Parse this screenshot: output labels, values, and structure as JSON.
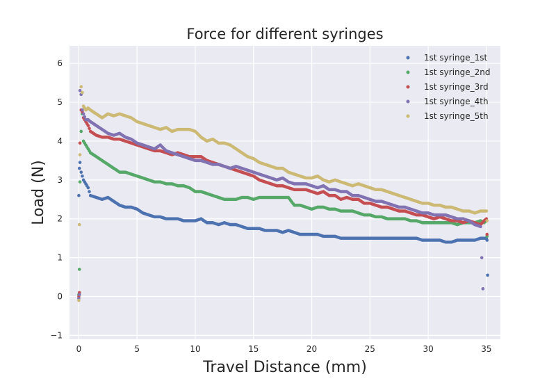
{
  "chart_data": {
    "type": "scatter",
    "title": "Force for different syringes",
    "xlabel": "Travel Distance (mm)",
    "ylabel": "Load (N)",
    "xlim": [
      -0.8,
      36.2
    ],
    "ylim": [
      -1.1,
      6.45
    ],
    "xticks": [
      0,
      5,
      10,
      15,
      20,
      25,
      30,
      35
    ],
    "yticks": [
      -1,
      0,
      1,
      2,
      3,
      4,
      5,
      6
    ],
    "xtick_labels": [
      "0",
      "5",
      "10",
      "15",
      "20",
      "25",
      "30",
      "35"
    ],
    "ytick_labels": [
      "−1",
      "0",
      "1",
      "2",
      "3",
      "4",
      "5",
      "6"
    ],
    "grid": true,
    "legend_position": "top-right",
    "series": [
      {
        "name": "1st syringe_1st",
        "color": "#4C72B0",
        "x": [
          0.0,
          0.05,
          0.1,
          0.2,
          0.3,
          0.4,
          0.6,
          0.8,
          1.0,
          1.5,
          2.0,
          2.5,
          3.0,
          3.5,
          4.0,
          4.5,
          5.0,
          5.5,
          6.0,
          6.5,
          7.0,
          7.5,
          8.0,
          8.5,
          9.0,
          9.5,
          10.0,
          10.5,
          11.0,
          11.5,
          12.0,
          12.5,
          13.0,
          13.5,
          14.0,
          14.5,
          15.0,
          15.5,
          16.0,
          16.5,
          17.0,
          17.5,
          18.0,
          18.5,
          19.0,
          19.5,
          20.0,
          20.5,
          21.0,
          21.5,
          22.0,
          22.5,
          23.0,
          23.5,
          24.0,
          24.5,
          25.0,
          25.5,
          26.0,
          26.5,
          27.0,
          27.5,
          28.0,
          28.5,
          29.0,
          29.5,
          30.0,
          30.5,
          31.0,
          31.5,
          32.0,
          32.5,
          33.0,
          33.5,
          34.0,
          34.5,
          34.8,
          35.0,
          35.05,
          35.1
        ],
        "y": [
          2.6,
          3.3,
          3.45,
          3.2,
          3.1,
          3.0,
          2.9,
          2.8,
          2.6,
          2.55,
          2.5,
          2.55,
          2.45,
          2.35,
          2.3,
          2.3,
          2.25,
          2.15,
          2.1,
          2.05,
          2.05,
          2.0,
          2.0,
          2.0,
          1.95,
          1.95,
          1.95,
          2.0,
          1.9,
          1.9,
          1.85,
          1.9,
          1.85,
          1.85,
          1.8,
          1.75,
          1.75,
          1.75,
          1.7,
          1.7,
          1.7,
          1.65,
          1.7,
          1.65,
          1.6,
          1.6,
          1.6,
          1.6,
          1.55,
          1.55,
          1.55,
          1.5,
          1.5,
          1.5,
          1.5,
          1.5,
          1.5,
          1.5,
          1.5,
          1.5,
          1.5,
          1.5,
          1.5,
          1.5,
          1.5,
          1.45,
          1.45,
          1.45,
          1.45,
          1.4,
          1.4,
          1.45,
          1.45,
          1.45,
          1.45,
          1.5,
          1.5,
          1.5,
          1.45,
          0.55
        ]
      },
      {
        "name": "1st syringe_2nd",
        "color": "#55A868",
        "x": [
          0.0,
          0.05,
          0.1,
          0.2,
          0.3,
          0.4,
          0.6,
          0.8,
          1.0,
          1.5,
          2.0,
          2.5,
          3.0,
          3.5,
          4.0,
          4.5,
          5.0,
          5.5,
          6.0,
          6.5,
          7.0,
          7.5,
          8.0,
          8.5,
          9.0,
          9.5,
          10.0,
          10.5,
          11.0,
          11.5,
          12.0,
          12.5,
          13.0,
          13.5,
          14.0,
          14.5,
          15.0,
          15.5,
          16.0,
          16.5,
          17.0,
          17.5,
          18.0,
          18.5,
          19.0,
          19.5,
          20.0,
          20.5,
          21.0,
          21.5,
          22.0,
          22.5,
          23.0,
          23.5,
          24.0,
          24.5,
          25.0,
          25.5,
          26.0,
          26.5,
          27.0,
          27.5,
          28.0,
          28.5,
          29.0,
          29.5,
          30.0,
          30.5,
          31.0,
          31.5,
          32.0,
          32.5,
          33.0,
          33.5,
          34.0,
          34.5,
          34.8,
          35.0,
          35.05
        ],
        "y": [
          0.05,
          0.7,
          2.95,
          4.25,
          4.7,
          4.0,
          3.9,
          3.8,
          3.7,
          3.6,
          3.5,
          3.4,
          3.3,
          3.2,
          3.2,
          3.15,
          3.1,
          3.05,
          3.0,
          2.95,
          2.95,
          2.9,
          2.9,
          2.85,
          2.85,
          2.8,
          2.7,
          2.7,
          2.65,
          2.6,
          2.55,
          2.5,
          2.5,
          2.5,
          2.55,
          2.55,
          2.5,
          2.55,
          2.55,
          2.55,
          2.55,
          2.55,
          2.55,
          2.35,
          2.35,
          2.3,
          2.25,
          2.3,
          2.3,
          2.25,
          2.25,
          2.2,
          2.2,
          2.2,
          2.15,
          2.1,
          2.1,
          2.05,
          2.05,
          2.0,
          2.0,
          2.0,
          2.0,
          1.95,
          1.95,
          1.9,
          1.9,
          1.9,
          1.9,
          1.9,
          1.9,
          1.85,
          1.9,
          1.9,
          1.9,
          1.95,
          1.9,
          1.95,
          1.55
        ]
      },
      {
        "name": "1st syringe_3rd",
        "color": "#C44E52",
        "x": [
          0.0,
          0.05,
          0.1,
          0.2,
          0.3,
          0.4,
          0.6,
          0.8,
          1.0,
          1.5,
          2.0,
          2.5,
          3.0,
          3.5,
          4.0,
          4.5,
          5.0,
          5.5,
          6.0,
          6.5,
          7.0,
          7.5,
          8.0,
          8.5,
          9.0,
          9.5,
          10.0,
          10.5,
          11.0,
          11.5,
          12.0,
          12.5,
          13.0,
          13.5,
          14.0,
          14.5,
          15.0,
          15.5,
          16.0,
          16.5,
          17.0,
          17.5,
          18.0,
          18.5,
          19.0,
          19.5,
          20.0,
          20.5,
          21.0,
          21.5,
          22.0,
          22.5,
          23.0,
          23.5,
          24.0,
          24.5,
          25.0,
          25.5,
          26.0,
          26.5,
          27.0,
          27.5,
          28.0,
          28.5,
          29.0,
          29.5,
          30.0,
          30.5,
          31.0,
          31.5,
          32.0,
          32.5,
          33.0,
          33.5,
          34.0,
          34.5,
          34.8,
          35.0,
          35.05
        ],
        "y": [
          0.0,
          0.1,
          3.95,
          4.8,
          4.75,
          4.6,
          4.5,
          4.4,
          4.25,
          4.15,
          4.1,
          4.1,
          4.05,
          4.05,
          4.0,
          3.95,
          3.9,
          3.85,
          3.8,
          3.75,
          3.75,
          3.7,
          3.65,
          3.7,
          3.65,
          3.6,
          3.6,
          3.6,
          3.5,
          3.45,
          3.4,
          3.35,
          3.3,
          3.25,
          3.2,
          3.15,
          3.1,
          3.0,
          2.95,
          2.9,
          2.85,
          2.85,
          2.8,
          2.75,
          2.75,
          2.75,
          2.7,
          2.65,
          2.7,
          2.6,
          2.6,
          2.5,
          2.55,
          2.5,
          2.5,
          2.4,
          2.4,
          2.35,
          2.3,
          2.3,
          2.25,
          2.2,
          2.2,
          2.15,
          2.1,
          2.1,
          2.05,
          2.0,
          2.05,
          2.0,
          1.95,
          1.95,
          1.9,
          1.95,
          1.9,
          1.85,
          1.95,
          2.0,
          1.6
        ]
      },
      {
        "name": "1st syringe_4th",
        "color": "#8172B2",
        "x": [
          0.0,
          0.05,
          0.1,
          0.2,
          0.3,
          0.4,
          0.6,
          0.8,
          1.0,
          1.5,
          2.0,
          2.5,
          3.0,
          3.5,
          4.0,
          4.5,
          5.0,
          5.5,
          6.0,
          6.5,
          7.0,
          7.5,
          8.0,
          8.5,
          9.0,
          9.5,
          10.0,
          10.5,
          11.0,
          11.5,
          12.0,
          12.5,
          13.0,
          13.5,
          14.0,
          14.5,
          15.0,
          15.5,
          16.0,
          16.5,
          17.0,
          17.5,
          18.0,
          18.5,
          19.0,
          19.5,
          20.0,
          20.5,
          21.0,
          21.5,
          22.0,
          22.5,
          23.0,
          23.5,
          24.0,
          24.5,
          25.0,
          25.5,
          26.0,
          26.5,
          27.0,
          27.5,
          28.0,
          28.5,
          29.0,
          29.5,
          30.0,
          30.5,
          31.0,
          31.5,
          32.0,
          32.5,
          33.0,
          33.5,
          34.0,
          34.5,
          34.7
        ],
        "y": [
          -0.05,
          0.05,
          5.3,
          5.2,
          4.8,
          4.7,
          4.55,
          4.55,
          4.5,
          4.4,
          4.3,
          4.2,
          4.15,
          4.2,
          4.1,
          4.05,
          3.95,
          3.9,
          3.85,
          3.8,
          3.9,
          3.75,
          3.7,
          3.65,
          3.6,
          3.55,
          3.5,
          3.5,
          3.45,
          3.4,
          3.4,
          3.35,
          3.3,
          3.35,
          3.3,
          3.25,
          3.2,
          3.15,
          3.1,
          3.05,
          3.0,
          3.05,
          2.95,
          2.9,
          2.9,
          2.9,
          2.85,
          2.8,
          2.85,
          2.75,
          2.75,
          2.7,
          2.7,
          2.6,
          2.6,
          2.55,
          2.5,
          2.45,
          2.45,
          2.4,
          2.35,
          2.3,
          2.3,
          2.25,
          2.2,
          2.15,
          2.15,
          2.1,
          2.1,
          2.1,
          2.05,
          2.0,
          2.0,
          1.95,
          1.85,
          1.8,
          0.2
        ]
      },
      {
        "name": "1st syringe_5th",
        "color": "#CCB974",
        "x": [
          0.0,
          0.05,
          0.1,
          0.2,
          0.3,
          0.4,
          0.6,
          0.8,
          1.0,
          1.5,
          2.0,
          2.5,
          3.0,
          3.5,
          4.0,
          4.5,
          5.0,
          5.5,
          6.0,
          6.5,
          7.0,
          7.5,
          8.0,
          8.5,
          9.0,
          9.5,
          10.0,
          10.5,
          11.0,
          11.5,
          12.0,
          12.5,
          13.0,
          13.5,
          14.0,
          14.5,
          15.0,
          15.5,
          16.0,
          16.5,
          17.0,
          17.5,
          18.0,
          18.5,
          19.0,
          19.5,
          20.0,
          20.5,
          21.0,
          21.5,
          22.0,
          22.5,
          23.0,
          23.5,
          24.0,
          24.5,
          25.0,
          25.5,
          26.0,
          26.5,
          27.0,
          27.5,
          28.0,
          28.5,
          29.0,
          29.5,
          30.0,
          30.5,
          31.0,
          31.5,
          32.0,
          32.5,
          33.0,
          33.5,
          34.0,
          34.5,
          35.0,
          35.05
        ],
        "y": [
          -0.1,
          1.85,
          3.65,
          5.4,
          5.25,
          4.9,
          4.8,
          4.85,
          4.8,
          4.7,
          4.6,
          4.7,
          4.65,
          4.7,
          4.65,
          4.6,
          4.5,
          4.45,
          4.4,
          4.35,
          4.3,
          4.35,
          4.25,
          4.3,
          4.3,
          4.3,
          4.25,
          4.1,
          4.0,
          4.05,
          3.95,
          3.95,
          3.9,
          3.8,
          3.7,
          3.6,
          3.55,
          3.45,
          3.4,
          3.35,
          3.3,
          3.3,
          3.2,
          3.15,
          3.1,
          3.05,
          3.05,
          3.1,
          3.0,
          2.95,
          3.0,
          2.95,
          2.9,
          2.85,
          2.9,
          2.85,
          2.8,
          2.75,
          2.75,
          2.7,
          2.65,
          2.6,
          2.55,
          2.5,
          2.45,
          2.4,
          2.4,
          2.35,
          2.35,
          2.3,
          2.3,
          2.25,
          2.2,
          2.2,
          2.15,
          2.2,
          2.2,
          1.95
        ]
      }
    ]
  }
}
